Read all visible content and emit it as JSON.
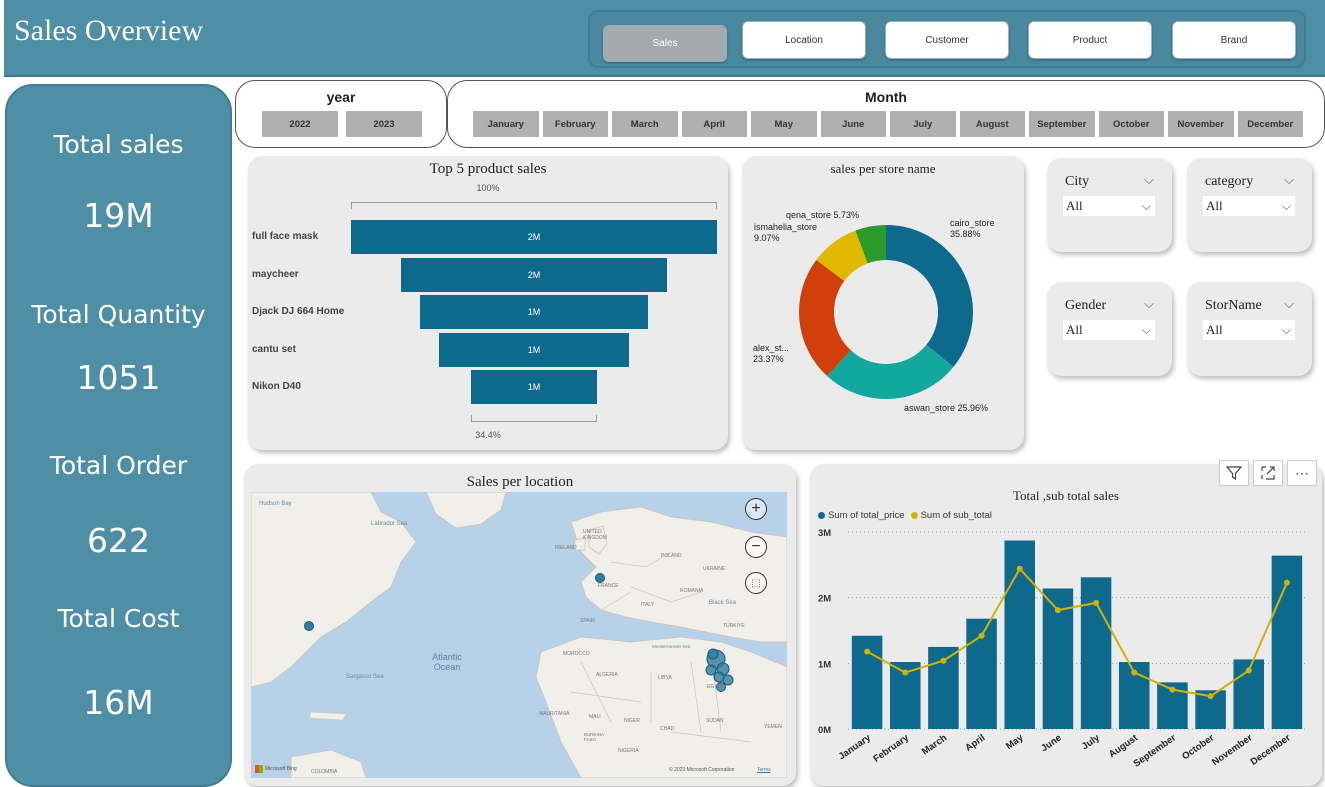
{
  "header": {
    "title": "Sales Overview"
  },
  "nav": {
    "items": [
      "Sales",
      "Location",
      "Customer",
      "Product",
      "Brand"
    ],
    "active": "Sales"
  },
  "kpis": [
    {
      "label": "Total sales",
      "value": "19M"
    },
    {
      "label": "Total Quantity",
      "value": "1051"
    },
    {
      "label": "Total Order",
      "value": "622"
    },
    {
      "label": "Total Cost",
      "value": "16M"
    }
  ],
  "year_slicer": {
    "title": "year",
    "options": [
      "2022",
      "2023"
    ]
  },
  "month_slicer": {
    "title": "Month",
    "options": [
      "January",
      "February",
      "March",
      "April",
      "May",
      "June",
      "July",
      "August",
      "September",
      "October",
      "November",
      "December"
    ]
  },
  "funnel": {
    "title": "Top 5 product sales",
    "top_pct": "100%",
    "bottom_pct": "34.4%",
    "rows": [
      {
        "label": "full face mask",
        "value": "2M",
        "rel": 1.0
      },
      {
        "label": "maycheer",
        "value": "2M",
        "rel": 0.727
      },
      {
        "label": "Djack DJ 664 Home",
        "value": "1M",
        "rel": 0.624
      },
      {
        "label": "cantu set",
        "value": "1M",
        "rel": 0.518
      },
      {
        "label": "Nikon D40",
        "value": "1M",
        "rel": 0.344
      }
    ]
  },
  "donut": {
    "title": "sales per store name",
    "slices": [
      {
        "name": "cairo_store",
        "label": "35.88%",
        "pct": 35.88,
        "color": "#0e6a8c"
      },
      {
        "name": "aswan_store",
        "label": "25.96%",
        "pct": 25.96,
        "color": "#12a89d"
      },
      {
        "name": "alex_st...",
        "label": "23.37%",
        "pct": 23.37,
        "color": "#d33f0a"
      },
      {
        "name": "ismahelia_store",
        "label": "9.07%",
        "pct": 9.07,
        "color": "#e0b800"
      },
      {
        "name": "qena_store",
        "label": "5.73%",
        "pct": 5.73,
        "color": "#2a9a2a"
      }
    ]
  },
  "filters": [
    {
      "title": "City",
      "value": "All"
    },
    {
      "title": "category",
      "value": "All"
    },
    {
      "title": "Gender",
      "value": "All"
    },
    {
      "title": "StorName",
      "value": "All"
    }
  ],
  "map": {
    "title": "Sales per location",
    "labels": {
      "hudson": "Hudson Bay",
      "labrador": "Labrador Sea",
      "atlantic": "Atlantic Ocean",
      "sargasso": "Sargasso Sea",
      "uk": "UNITED KINGDOM",
      "ireland": "IRELAND",
      "france": "FRANCE",
      "spain": "SPAIN",
      "poland": "POLAND",
      "ukraine": "UKRAINE",
      "romania": "ROMANIA",
      "italy": "ITALY",
      "black_sea": "Black Sea",
      "turkiye": "TÜRKIYE",
      "morocco": "MOROCCO",
      "algeria": "ALGERIA",
      "libya": "LIBYA",
      "med": "Mediterranean Sea",
      "egypt": "EGYPT",
      "mali": "MALI",
      "niger": "NIGER",
      "chad": "CHAD",
      "sudan": "SUDAN",
      "mauritania": "MAURITANIA",
      "nigeria": "NIGERIA",
      "burkina": "BURKINA FASO",
      "yemen": "YEMEN",
      "colombia": "COLOMBIA",
      "bing": "Microsoft Bing",
      "copyright": "© 2023 Microsoft Corporation",
      "terms": "Terms"
    }
  },
  "combo": {
    "title": "Total ,sub total sales",
    "legend": [
      "Sum of total_price",
      "Sum of sub_total"
    ]
  },
  "chart_data": {
    "type": "bar",
    "title": "Total ,sub total sales",
    "categories": [
      "January",
      "February",
      "March",
      "April",
      "May",
      "June",
      "July",
      "August",
      "September",
      "October",
      "November",
      "December"
    ],
    "series": [
      {
        "name": "Sum of total_price",
        "type": "bar",
        "color": "#0e6a8c",
        "values": [
          1.42,
          1.02,
          1.25,
          1.68,
          2.87,
          2.14,
          2.31,
          1.02,
          0.71,
          0.59,
          1.06,
          2.64
        ]
      },
      {
        "name": "Sum of sub_total",
        "type": "line",
        "color": "#d4b106",
        "values": [
          1.18,
          0.86,
          1.04,
          1.42,
          2.44,
          1.81,
          1.92,
          0.86,
          0.6,
          0.5,
          0.89,
          2.23
        ]
      }
    ],
    "yticks": [
      "0M",
      "1M",
      "2M",
      "3M"
    ],
    "ylim": [
      0,
      3
    ]
  }
}
